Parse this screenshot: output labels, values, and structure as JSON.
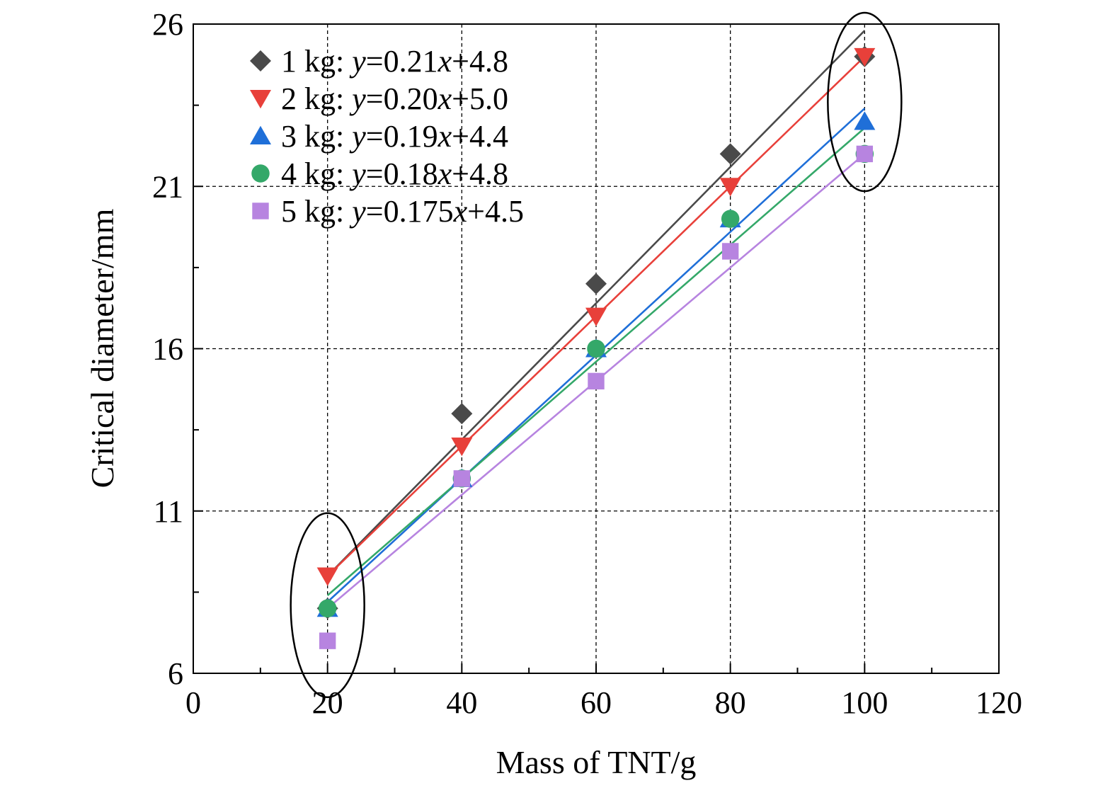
{
  "chart_data": {
    "type": "scatter",
    "xlabel": "Mass of TNT/g",
    "ylabel": "Critical diameter/mm",
    "xlim": [
      0,
      120
    ],
    "ylim": [
      6,
      26
    ],
    "x_ticks": [
      0,
      20,
      40,
      60,
      80,
      100,
      120
    ],
    "y_ticks": [
      6,
      11,
      16,
      21,
      26
    ],
    "grid": "dashed at major ticks",
    "legend_position": "top-left",
    "x": [
      20,
      40,
      60,
      80,
      100
    ],
    "series": [
      {
        "label_prefix": "1 kg: ",
        "equation": {
          "y": "y",
          "eq": "=0.21",
          "x": "x",
          "rest": "+4.8"
        },
        "marker": "diamond",
        "color": "#4a4a4a",
        "values": [
          8.0,
          14.0,
          18.0,
          22.0,
          25.0
        ],
        "fit": {
          "slope": 0.21,
          "intercept": 4.8
        }
      },
      {
        "label_prefix": "2 kg: ",
        "equation": {
          "y": "y",
          "eq": "=0.20",
          "x": "x",
          "rest": "+5.0"
        },
        "marker": "triangle-down",
        "color": "#e8403a",
        "values": [
          9.0,
          13.0,
          17.0,
          21.0,
          25.0
        ],
        "fit": {
          "slope": 0.2,
          "intercept": 5.0
        }
      },
      {
        "label_prefix": "3 kg: ",
        "equation": {
          "y": "y",
          "eq": "=0.19",
          "x": "x",
          "rest": "+4.4"
        },
        "marker": "triangle-up",
        "color": "#1f6fd8",
        "values": [
          8.0,
          12.0,
          16.0,
          20.0,
          23.0
        ],
        "fit": {
          "slope": 0.19,
          "intercept": 4.4
        }
      },
      {
        "label_prefix": "4 kg: ",
        "equation": {
          "y": "y",
          "eq": "=0.18",
          "x": "x",
          "rest": "+4.8"
        },
        "marker": "circle",
        "color": "#34a869",
        "values": [
          8.0,
          12.0,
          16.0,
          20.0,
          22.0
        ],
        "fit": {
          "slope": 0.18,
          "intercept": 4.8
        }
      },
      {
        "label_prefix": "5 kg: ",
        "equation": {
          "y": "y",
          "eq": "=0.175",
          "x": "x",
          "rest": "+4.5"
        },
        "marker": "square",
        "color": "#b784e0",
        "values": [
          7.0,
          12.0,
          15.0,
          19.0,
          22.0
        ],
        "fit": {
          "slope": 0.175,
          "intercept": 4.5
        }
      }
    ],
    "annotations": [
      {
        "type": "ellipse",
        "center": [
          20,
          8.1
        ],
        "note": "circles the x=20 data group"
      },
      {
        "type": "ellipse",
        "center": [
          100,
          23.6
        ],
        "note": "circles the x=100 data group"
      }
    ]
  }
}
